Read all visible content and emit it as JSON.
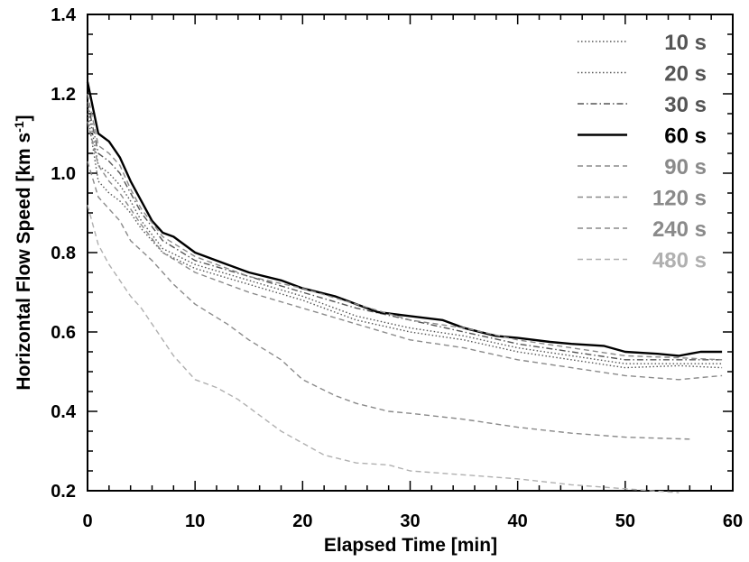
{
  "chart_data": {
    "type": "line",
    "xlabel": "Elapsed Time   [min]",
    "ylabel": "Horizontal Flow Speed   [km s",
    "ylabel_sup": "-1",
    "ylabel_end": "]",
    "xlim": [
      0,
      60
    ],
    "ylim": [
      0.2,
      1.4
    ],
    "xticks": [
      0,
      10,
      20,
      30,
      40,
      50,
      60
    ],
    "xtick_labels": [
      "0",
      "10",
      "20",
      "30",
      "40",
      "50",
      "60"
    ],
    "yticks": [
      0.2,
      0.4,
      0.6,
      0.8,
      1.0,
      1.2,
      1.4
    ],
    "ytick_labels": [
      "0.2",
      "0.4",
      "0.6",
      "0.8",
      "1.0",
      "1.2",
      "1.4"
    ],
    "grid": false,
    "legend_position": "top-right",
    "series": [
      {
        "name": "10 s",
        "color": "#555555",
        "dash": "1.5,2.5",
        "x": [
          0,
          1,
          2,
          3,
          4,
          5,
          7,
          10,
          15,
          20,
          25,
          30,
          35,
          40,
          45,
          50,
          55,
          59
        ],
        "y": [
          1.15,
          0.98,
          0.95,
          0.93,
          0.9,
          0.86,
          0.8,
          0.76,
          0.72,
          0.68,
          0.63,
          0.6,
          0.58,
          0.55,
          0.53,
          0.51,
          0.515,
          0.51
        ]
      },
      {
        "name": "20 s",
        "color": "#555555",
        "dash": "1.5,2.5",
        "x": [
          0,
          1,
          2,
          3,
          4,
          5,
          7,
          10,
          15,
          20,
          25,
          30,
          35,
          40,
          45,
          50,
          55,
          59
        ],
        "y": [
          1.17,
          1.02,
          1.0,
          0.97,
          0.93,
          0.88,
          0.81,
          0.77,
          0.73,
          0.69,
          0.64,
          0.61,
          0.59,
          0.56,
          0.54,
          0.52,
          0.52,
          0.52
        ]
      },
      {
        "name": "30 s",
        "color": "#555555",
        "dash": "7,3,1.5,3",
        "x": [
          0,
          1,
          2,
          3,
          4,
          5,
          7,
          10,
          15,
          20,
          25,
          30,
          35,
          40,
          45,
          50,
          55,
          59
        ],
        "y": [
          1.18,
          1.05,
          1.03,
          1.0,
          0.95,
          0.9,
          0.83,
          0.78,
          0.74,
          0.7,
          0.66,
          0.63,
          0.6,
          0.57,
          0.55,
          0.53,
          0.53,
          0.53
        ]
      },
      {
        "name": "60 s",
        "color": "#000000",
        "dash": "",
        "x": [
          0,
          1,
          2,
          3,
          4,
          5,
          6,
          7,
          8,
          10,
          13,
          15,
          18,
          20,
          23,
          25,
          27,
          30,
          33,
          35,
          38,
          40,
          43,
          45,
          48,
          50,
          53,
          55,
          57,
          59
        ],
        "y": [
          1.23,
          1.1,
          1.08,
          1.04,
          0.98,
          0.93,
          0.88,
          0.85,
          0.84,
          0.8,
          0.77,
          0.75,
          0.73,
          0.71,
          0.69,
          0.67,
          0.65,
          0.64,
          0.63,
          0.61,
          0.59,
          0.585,
          0.575,
          0.57,
          0.565,
          0.55,
          0.545,
          0.54,
          0.55,
          0.55
        ]
      },
      {
        "name": "90 s",
        "color": "#8a8a8a",
        "dash": "6,4",
        "x": [
          0,
          1,
          2,
          3,
          4,
          5,
          7,
          10,
          15,
          20,
          25,
          30,
          35,
          40,
          45,
          50,
          55,
          59
        ],
        "y": [
          1.2,
          1.07,
          1.05,
          1.02,
          0.96,
          0.91,
          0.84,
          0.79,
          0.74,
          0.71,
          0.67,
          0.63,
          0.61,
          0.58,
          0.56,
          0.54,
          0.535,
          0.53
        ]
      },
      {
        "name": "120 s",
        "color": "#8a8a8a",
        "dash": "6,4",
        "x": [
          0,
          1,
          2,
          3,
          4,
          5,
          7,
          10,
          15,
          20,
          25,
          30,
          35,
          40,
          45,
          50,
          55,
          59
        ],
        "y": [
          1.13,
          1.02,
          0.98,
          0.95,
          0.91,
          0.87,
          0.8,
          0.75,
          0.7,
          0.66,
          0.62,
          0.58,
          0.56,
          0.53,
          0.51,
          0.49,
          0.48,
          0.49
        ]
      },
      {
        "name": "240 s",
        "color": "#8a8a8a",
        "dash": "6,4",
        "x": [
          0,
          1,
          2,
          3,
          4,
          6,
          8,
          10,
          13,
          15,
          18,
          20,
          23,
          25,
          28,
          30,
          35,
          40,
          45,
          50,
          56
        ],
        "y": [
          1.03,
          0.94,
          0.91,
          0.88,
          0.83,
          0.78,
          0.72,
          0.67,
          0.62,
          0.58,
          0.53,
          0.48,
          0.44,
          0.42,
          0.4,
          0.395,
          0.38,
          0.36,
          0.345,
          0.335,
          0.33
        ]
      },
      {
        "name": "480 s",
        "color": "#b0b0b0",
        "dash": "6,4",
        "x": [
          0,
          1,
          2,
          3,
          4,
          5,
          6,
          7,
          8,
          10,
          12,
          14,
          16,
          18,
          20,
          22,
          25,
          28,
          30,
          35,
          40,
          45,
          50,
          55
        ],
        "y": [
          0.92,
          0.82,
          0.77,
          0.73,
          0.69,
          0.66,
          0.62,
          0.58,
          0.54,
          0.48,
          0.46,
          0.43,
          0.39,
          0.35,
          0.32,
          0.29,
          0.27,
          0.265,
          0.25,
          0.24,
          0.23,
          0.215,
          0.205,
          0.195
        ]
      }
    ]
  }
}
